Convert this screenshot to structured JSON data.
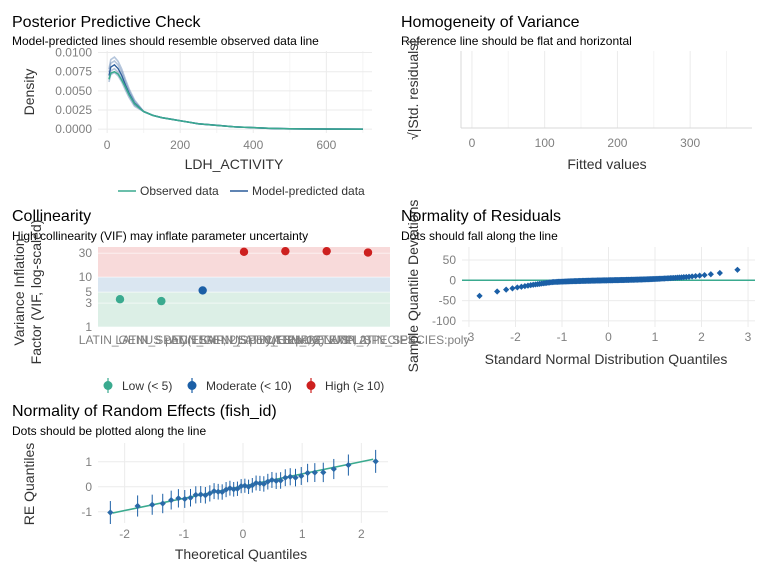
{
  "chart_data": [
    {
      "id": "ppc",
      "type": "area",
      "title": "Posterior Predictive Check",
      "subtitle": "Model-predicted lines should resemble observed data line",
      "xlabel": "LDH_ACTIVITY",
      "ylabel": "Density",
      "xlim": [
        -25,
        725
      ],
      "ylim": [
        -0.0005,
        0.0102
      ],
      "xticks": [
        0,
        200,
        400,
        600
      ],
      "yticks": [
        0.0,
        0.0025,
        0.005,
        0.0075,
        0.01
      ],
      "ytick_labels": [
        "0.0000",
        "0.0025",
        "0.0050",
        "0.0075",
        "0.0100"
      ],
      "grid": true,
      "legend": {
        "position": "bottom",
        "entries": [
          "Observed data",
          "Model-predicted data"
        ]
      },
      "series": [
        {
          "name": "Observed data",
          "color": "#3aaa8f",
          "x": [
            5,
            10,
            20,
            30,
            40,
            50,
            60,
            75,
            100,
            125,
            150,
            175,
            200,
            225,
            250,
            300,
            350,
            400,
            450,
            500,
            550,
            600,
            650,
            700
          ],
          "y": [
            0.0065,
            0.0073,
            0.0075,
            0.0072,
            0.0064,
            0.0055,
            0.0045,
            0.0033,
            0.0023,
            0.0018,
            0.0015,
            0.0013,
            0.0011,
            0.0009,
            0.0007,
            0.0005,
            0.0003,
            0.0002,
            0.0001,
            5e-05,
            3e-05,
            2e-05,
            1e-05,
            0.0
          ]
        },
        {
          "name": "Model-predicted data",
          "color": "#2a5c9a",
          "x": [
            5,
            10,
            20,
            30,
            40,
            50,
            60,
            75,
            100,
            125,
            150,
            175,
            200,
            225,
            250,
            300,
            350,
            400,
            450,
            500,
            550,
            600,
            650,
            700
          ],
          "y": [
            0.007,
            0.0081,
            0.0084,
            0.0079,
            0.007,
            0.0058,
            0.0047,
            0.0034,
            0.0023,
            0.0018,
            0.0015,
            0.0013,
            0.0011,
            0.0009,
            0.0007,
            0.0005,
            0.0003,
            0.0002,
            0.0001,
            5e-05,
            3e-05,
            2e-05,
            1e-05,
            0.0
          ]
        }
      ]
    },
    {
      "id": "homogeneity",
      "type": "scatter",
      "title": "Homogeneity of Variance",
      "subtitle": "Reference line should be flat and horizontal",
      "xlabel": "Fitted values",
      "ylabel": "√|Std. residuals|",
      "xlim": [
        -15,
        385
      ],
      "xticks": [
        0,
        100,
        200,
        300
      ],
      "grid": true
    },
    {
      "id": "collinearity",
      "type": "scatter",
      "title": "Collinearity",
      "subtitle": "High collinearity (VIF) may inflate parameter uncertainty",
      "ylabel": "Variance Inflation\nFactor (VIF, log-scaled)",
      "ylim": [
        1,
        40
      ],
      "yscale": "log",
      "yticks": [
        1,
        3,
        5,
        10,
        30
      ],
      "zones": [
        {
          "label": "Low (< 5)",
          "from": 1,
          "to": 5,
          "color": "#3aaa8f"
        },
        {
          "label": "Moderate (< 10)",
          "from": 5,
          "to": 10,
          "color": "#1b5fa6"
        },
        {
          "label": "High (≥ 10)",
          "from": 10,
          "to": 40,
          "color": "#cd201f"
        }
      ],
      "categories": [
        "LATIN_GENUS",
        "LATIN_SPECIES",
        "TEMP",
        "LATIN_GENUS:TEMP",
        "LATIN_SPECIES:TEMP",
        "LATIN_GENUS:LATIN_SPECIES",
        "LATIN_GENUS:LATIN_SPECIES:TEMP"
      ],
      "tick_labels": [
        "LATIN_GENUS",
        "LATIN_SPECIES",
        "poly(TEMP, 2)",
        "LATIN_GENUS:poly(TEMP, 2)",
        "LATIN_SPECIES:poly(TEMP, 2)",
        "LATIN_GENUS:LATIN_SPECIES",
        "LATIN_GENUS:LATIN_SPECIES:poly"
      ],
      "values": [
        3.6,
        3.3,
        5.4,
        32,
        33,
        33,
        31
      ],
      "levels": [
        "Low (< 5)",
        "Low (< 5)",
        "Moderate (< 10)",
        "High (≥ 10)",
        "High (≥ 10)",
        "High (≥ 10)",
        "High (≥ 10)"
      ],
      "legend": {
        "position": "bottom",
        "entries": [
          "Low (< 5)",
          "Moderate (< 10)",
          "High (≥ 10)"
        ]
      },
      "grid": true
    },
    {
      "id": "qq_residuals",
      "type": "scatter",
      "title": "Normality of Residuals",
      "subtitle": "Dots should fall along the line",
      "xlabel": "Standard Normal Distribution Quantiles",
      "ylabel": "Sample Quantile Deviations",
      "xlim": [
        -3.15,
        3.15
      ],
      "ylim": [
        -115,
        82
      ],
      "xticks": [
        -3,
        -2,
        -1,
        0,
        1,
        2,
        3
      ],
      "yticks": [
        -100,
        -50,
        0,
        50
      ],
      "grid": true
    },
    {
      "id": "qq_random_effects",
      "type": "scatter",
      "title": "Normality of Random Effects (fish_id)",
      "subtitle": "Dots should be plotted along the line",
      "xlabel": "Theoretical Quantiles",
      "ylabel": "RE Quantiles",
      "xlim": [
        -2.45,
        2.45
      ],
      "ylim": [
        -1.45,
        1.75
      ],
      "xticks": [
        -2,
        -1,
        0,
        1,
        2
      ],
      "yticks": [
        -1,
        0,
        1
      ],
      "grid": true
    }
  ]
}
